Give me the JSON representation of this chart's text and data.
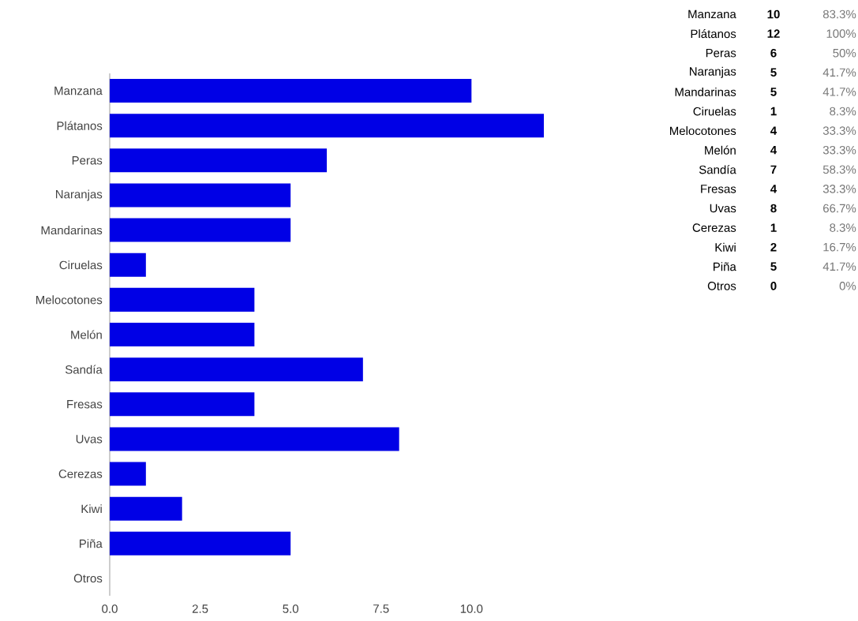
{
  "chart_data": [
    {
      "type": "bar",
      "orientation": "horizontal",
      "categories": [
        "Manzana",
        "Plátanos",
        "Peras",
        "Naranjas",
        "Mandarinas",
        "Ciruelas",
        "Melocotones",
        "Melón",
        "Sandía",
        "Fresas",
        "Uvas",
        "Cerezas",
        "Kiwi",
        "Piña",
        "Otros"
      ],
      "values": [
        10,
        12,
        6,
        5,
        5,
        1,
        4,
        4,
        7,
        4,
        8,
        1,
        2,
        5,
        0
      ],
      "color": "#0000e6",
      "xlim": [
        0,
        12
      ],
      "xticks": [
        {
          "value": 0,
          "label": "0.0"
        },
        {
          "value": 2.5,
          "label": "2.5"
        },
        {
          "value": 5,
          "label": "5.0"
        },
        {
          "value": 7.5,
          "label": "7.5"
        },
        {
          "value": 10,
          "label": "10.0"
        }
      ]
    },
    {
      "type": "other",
      "categories": [
        "Manzana",
        "Plátanos",
        "Peras",
        "Naranjas",
        "Mandarinas",
        "Ciruelas",
        "Melocotones",
        "Melón",
        "Sandía",
        "Fresas",
        "Uvas",
        "Cerezas",
        "Kiwi",
        "Piña",
        "Otros"
      ],
      "annotations": [
        "10",
        "83.3%",
        "12",
        "100%",
        "6",
        "50%",
        "5",
        "41.7%",
        "5",
        "41.7%",
        "1",
        "8.3%",
        "4",
        "33.3%",
        "4",
        "33.3%",
        "7",
        "58.3%",
        "4",
        "33.3%",
        "8",
        "66.7%",
        "1",
        "8.3%",
        "2",
        "16.7%",
        "5",
        "41.7%",
        "0",
        "0%"
      ]
    }
  ]
}
